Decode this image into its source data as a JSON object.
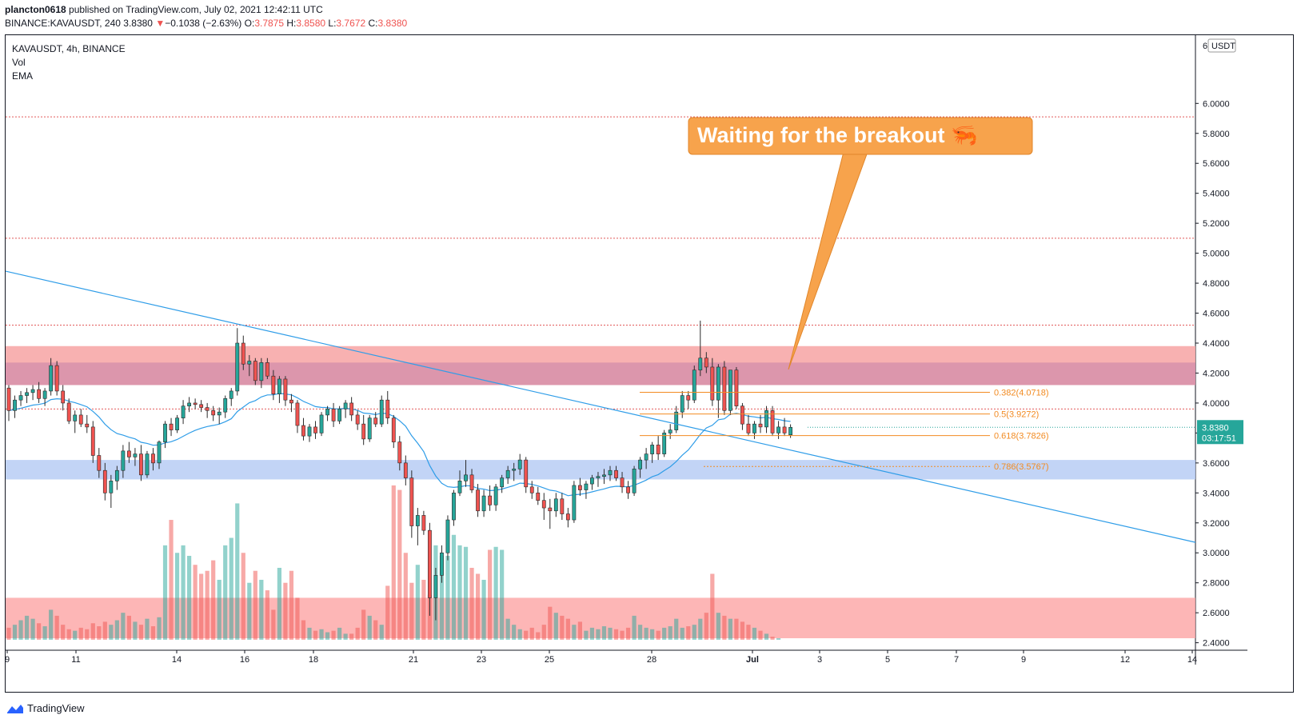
{
  "header": {
    "author": "plancton0618",
    "published": "published on TradingView.com, July 02, 2021 12:42:11 UTC",
    "symbol_line": "BINANCE:KAVAUSDT, 240",
    "last": "3.8380",
    "change_arrow": "▼",
    "change": "−0.1038 (−2.63%)",
    "o_label": "O:",
    "o": "3.7875",
    "h_label": "H:",
    "h": "3.8580",
    "l_label": "L:",
    "l": "3.7672",
    "c_label": "C:",
    "c": "3.8380"
  },
  "legend": {
    "title": "KAVAUSDT, 4h, BINANCE",
    "vol": "Vol",
    "ema": "EMA"
  },
  "price_axis": {
    "unit": "USDT",
    "current_price": "3.8380",
    "countdown": "03:17:51"
  },
  "annotation": {
    "text": "Waiting for the breakout 🦐",
    "color": "#f7a34c"
  },
  "footer": {
    "brand": "TradingView"
  },
  "colors": {
    "up": "#26a69a",
    "down": "#ef5350",
    "ema": "#2f9de8",
    "trendline": "#2f9de8",
    "fib": "#f28b22",
    "resistance_zone": "#f7a8a8",
    "support_zone": "#b7cdf5",
    "level_line": "#e25a5a"
  },
  "chart_data": {
    "type": "candlestick",
    "symbol": "KAVAUSDT",
    "interval": "4h",
    "exchange": "BINANCE",
    "x_ticks": [
      "9",
      "11",
      "14",
      "16",
      "18",
      "21",
      "23",
      "25",
      "28",
      "Jul",
      "3",
      "5",
      "7",
      "9",
      "12",
      "14"
    ],
    "y_ticks": [
      "6.0000",
      "5.8000",
      "5.6000",
      "5.4000",
      "5.2000",
      "5.0000",
      "4.8000",
      "4.6000",
      "4.4000",
      "4.2000",
      "4.0000",
      "3.8000",
      "3.6000",
      "3.4000",
      "3.2000",
      "3.0000",
      "2.8000",
      "2.6000",
      "2.4000"
    ],
    "y_top_tick": "6",
    "ylim": [
      2.35,
      6.45
    ],
    "horizontal_levels": [
      5.91,
      5.1,
      4.52,
      3.96
    ],
    "zones": [
      {
        "name": "resistance",
        "from": 4.12,
        "to": 4.38
      },
      {
        "name": "resistance-inner",
        "from": 4.12,
        "to": 4.27
      },
      {
        "name": "support",
        "from": 3.49,
        "to": 3.62
      },
      {
        "name": "volume-band",
        "from": 2.43,
        "to": 2.7
      }
    ],
    "trendline": {
      "from": {
        "x": "9",
        "y": 4.88
      },
      "to": {
        "x": "14",
        "y": 3.07
      }
    },
    "fib_levels": [
      {
        "label": "0.382(4.0718)",
        "value": 4.0718
      },
      {
        "label": "0.5(3.9272)",
        "value": 3.9272
      },
      {
        "label": "0.618(3.7826)",
        "value": 3.7826
      },
      {
        "label": "0.786(3.5767)",
        "value": 3.5767
      }
    ],
    "candles": [
      [
        4.1,
        4.12,
        3.88,
        3.95
      ],
      [
        3.95,
        4.05,
        3.9,
        4.02
      ],
      [
        4.02,
        4.08,
        3.98,
        4.05
      ],
      [
        4.05,
        4.1,
        4.0,
        4.07
      ],
      [
        4.07,
        4.12,
        4.02,
        4.09
      ],
      [
        4.09,
        4.14,
        4.0,
        4.03
      ],
      [
        4.03,
        4.1,
        3.98,
        4.08
      ],
      [
        4.08,
        4.3,
        4.05,
        4.25
      ],
      [
        4.25,
        4.28,
        4.05,
        4.08
      ],
      [
        4.08,
        4.12,
        3.95,
        4.0
      ],
      [
        4.0,
        4.03,
        3.86,
        3.88
      ],
      [
        3.88,
        3.95,
        3.8,
        3.92
      ],
      [
        3.92,
        3.96,
        3.84,
        3.86
      ],
      [
        3.86,
        3.92,
        3.8,
        3.84
      ],
      [
        3.84,
        3.88,
        3.6,
        3.65
      ],
      [
        3.65,
        3.7,
        3.5,
        3.55
      ],
      [
        3.55,
        3.6,
        3.35,
        3.4
      ],
      [
        3.4,
        3.52,
        3.3,
        3.48
      ],
      [
        3.48,
        3.58,
        3.42,
        3.55
      ],
      [
        3.55,
        3.72,
        3.5,
        3.68
      ],
      [
        3.68,
        3.74,
        3.6,
        3.64
      ],
      [
        3.64,
        3.7,
        3.58,
        3.66
      ],
      [
        3.66,
        3.72,
        3.48,
        3.52
      ],
      [
        3.52,
        3.68,
        3.5,
        3.66
      ],
      [
        3.66,
        3.7,
        3.55,
        3.6
      ],
      [
        3.6,
        3.75,
        3.56,
        3.74
      ],
      [
        3.74,
        3.88,
        3.7,
        3.86
      ],
      [
        3.86,
        3.9,
        3.78,
        3.82
      ],
      [
        3.82,
        3.92,
        3.8,
        3.9
      ],
      [
        3.9,
        4.02,
        3.86,
        3.98
      ],
      [
        3.98,
        4.04,
        3.94,
        4.0
      ],
      [
        4.0,
        4.03,
        3.96,
        3.99
      ],
      [
        3.99,
        4.02,
        3.94,
        3.97
      ],
      [
        3.97,
        4.0,
        3.9,
        3.95
      ],
      [
        3.95,
        3.98,
        3.88,
        3.92
      ],
      [
        3.92,
        3.97,
        3.86,
        3.94
      ],
      [
        3.94,
        4.05,
        3.9,
        4.03
      ],
      [
        4.03,
        4.1,
        3.98,
        4.08
      ],
      [
        4.08,
        4.5,
        4.05,
        4.4
      ],
      [
        4.4,
        4.45,
        4.22,
        4.26
      ],
      [
        4.26,
        4.32,
        4.18,
        4.28
      ],
      [
        4.28,
        4.3,
        4.12,
        4.15
      ],
      [
        4.15,
        4.3,
        4.1,
        4.27
      ],
      [
        4.27,
        4.3,
        4.16,
        4.18
      ],
      [
        4.18,
        4.22,
        4.02,
        4.06
      ],
      [
        4.06,
        4.18,
        4.0,
        4.16
      ],
      [
        4.16,
        4.18,
        3.98,
        4.02
      ],
      [
        4.02,
        4.06,
        3.94,
        4.0
      ],
      [
        4.0,
        4.02,
        3.8,
        3.85
      ],
      [
        3.85,
        3.9,
        3.75,
        3.78
      ],
      [
        3.78,
        3.86,
        3.74,
        3.84
      ],
      [
        3.84,
        3.88,
        3.76,
        3.8
      ],
      [
        3.8,
        3.94,
        3.78,
        3.92
      ],
      [
        3.92,
        3.98,
        3.88,
        3.96
      ],
      [
        3.96,
        4.0,
        3.84,
        3.88
      ],
      [
        3.88,
        3.98,
        3.86,
        3.96
      ],
      [
        3.96,
        4.02,
        3.9,
        4.0
      ],
      [
        4.0,
        4.04,
        3.88,
        3.92
      ],
      [
        3.92,
        3.95,
        3.82,
        3.86
      ],
      [
        3.86,
        3.92,
        3.72,
        3.76
      ],
      [
        3.76,
        3.92,
        3.74,
        3.9
      ],
      [
        3.9,
        3.94,
        3.84,
        3.86
      ],
      [
        3.86,
        4.05,
        3.84,
        4.02
      ],
      [
        4.02,
        4.08,
        3.86,
        3.9
      ],
      [
        3.9,
        3.92,
        3.7,
        3.74
      ],
      [
        3.74,
        3.78,
        3.55,
        3.6
      ],
      [
        3.6,
        3.65,
        3.45,
        3.5
      ],
      [
        3.5,
        3.55,
        3.1,
        3.18
      ],
      [
        3.18,
        3.3,
        3.05,
        3.25
      ],
      [
        3.25,
        3.28,
        3.12,
        3.15
      ],
      [
        3.15,
        3.2,
        2.58,
        2.7
      ],
      [
        2.7,
        2.9,
        2.55,
        2.85
      ],
      [
        2.85,
        3.05,
        2.8,
        3.0
      ],
      [
        3.0,
        3.25,
        2.95,
        3.22
      ],
      [
        3.22,
        3.42,
        3.18,
        3.4
      ],
      [
        3.4,
        3.55,
        3.38,
        3.48
      ],
      [
        3.48,
        3.62,
        3.44,
        3.52
      ],
      [
        3.52,
        3.56,
        3.4,
        3.42
      ],
      [
        3.42,
        3.46,
        3.24,
        3.28
      ],
      [
        3.28,
        3.42,
        3.24,
        3.38
      ],
      [
        3.38,
        3.45,
        3.28,
        3.32
      ],
      [
        3.32,
        3.46,
        3.28,
        3.44
      ],
      [
        3.44,
        3.52,
        3.4,
        3.5
      ],
      [
        3.5,
        3.58,
        3.46,
        3.55
      ],
      [
        3.55,
        3.6,
        3.48,
        3.56
      ],
      [
        3.56,
        3.66,
        3.52,
        3.62
      ],
      [
        3.62,
        3.64,
        3.4,
        3.44
      ],
      [
        3.44,
        3.48,
        3.36,
        3.4
      ],
      [
        3.4,
        3.44,
        3.32,
        3.35
      ],
      [
        3.35,
        3.4,
        3.22,
        3.3
      ],
      [
        3.3,
        3.36,
        3.16,
        3.28
      ],
      [
        3.28,
        3.4,
        3.24,
        3.36
      ],
      [
        3.36,
        3.4,
        3.22,
        3.26
      ],
      [
        3.26,
        3.3,
        3.17,
        3.22
      ],
      [
        3.22,
        3.48,
        3.2,
        3.45
      ],
      [
        3.45,
        3.5,
        3.38,
        3.42
      ],
      [
        3.42,
        3.48,
        3.36,
        3.46
      ],
      [
        3.46,
        3.52,
        3.42,
        3.5
      ],
      [
        3.5,
        3.54,
        3.44,
        3.51
      ],
      [
        3.51,
        3.56,
        3.46,
        3.52
      ],
      [
        3.52,
        3.58,
        3.48,
        3.55
      ],
      [
        3.55,
        3.58,
        3.48,
        3.5
      ],
      [
        3.5,
        3.54,
        3.4,
        3.44
      ],
      [
        3.44,
        3.48,
        3.36,
        3.4
      ],
      [
        3.4,
        3.58,
        3.38,
        3.56
      ],
      [
        3.56,
        3.64,
        3.5,
        3.62
      ],
      [
        3.62,
        3.7,
        3.56,
        3.66
      ],
      [
        3.66,
        3.74,
        3.6,
        3.72
      ],
      [
        3.72,
        3.78,
        3.62,
        3.66
      ],
      [
        3.66,
        3.82,
        3.64,
        3.8
      ],
      [
        3.8,
        3.86,
        3.76,
        3.82
      ],
      [
        3.82,
        3.98,
        3.8,
        3.94
      ],
      [
        3.94,
        4.08,
        3.9,
        4.05
      ],
      [
        4.05,
        4.08,
        3.96,
        4.02
      ],
      [
        4.02,
        4.25,
        4.0,
        4.22
      ],
      [
        4.22,
        4.55,
        4.18,
        4.3
      ],
      [
        4.3,
        4.34,
        4.2,
        4.24
      ],
      [
        4.24,
        4.3,
        3.98,
        4.02
      ],
      [
        4.02,
        4.26,
        3.9,
        4.24
      ],
      [
        4.24,
        4.28,
        3.92,
        3.95
      ],
      [
        3.95,
        4.22,
        3.92,
        4.22
      ],
      [
        4.22,
        4.24,
        3.96,
        3.98
      ],
      [
        3.98,
        4.0,
        3.82,
        3.86
      ],
      [
        3.86,
        3.92,
        3.78,
        3.8
      ],
      [
        3.8,
        3.88,
        3.76,
        3.86
      ],
      [
        3.86,
        3.92,
        3.8,
        3.84
      ],
      [
        3.84,
        3.98,
        3.8,
        3.95
      ],
      [
        3.95,
        3.98,
        3.78,
        3.8
      ],
      [
        3.8,
        3.88,
        3.76,
        3.84
      ],
      [
        3.84,
        3.9,
        3.78,
        3.8
      ],
      [
        3.7875,
        3.858,
        3.7672,
        3.838
      ]
    ],
    "volume": [
      2.5,
      2.52,
      2.55,
      2.58,
      2.56,
      2.53,
      2.51,
      2.62,
      2.58,
      2.52,
      2.49,
      2.48,
      2.5,
      2.49,
      2.53,
      2.51,
      2.54,
      2.52,
      2.55,
      2.6,
      2.58,
      2.54,
      2.52,
      2.56,
      2.51,
      2.57,
      3.05,
      3.22,
      3.0,
      3.05,
      2.98,
      2.92,
      2.86,
      2.88,
      2.95,
      2.82,
      3.05,
      3.1,
      3.33,
      3.0,
      2.8,
      2.88,
      2.82,
      2.75,
      2.62,
      2.9,
      2.8,
      2.88,
      2.7,
      2.55,
      2.5,
      2.48,
      2.49,
      2.47,
      2.48,
      2.5,
      2.46,
      2.46,
      2.5,
      2.62,
      2.58,
      2.55,
      2.52,
      2.78,
      3.45,
      3.42,
      3.0,
      2.8,
      2.92,
      2.82,
      2.72,
      3.05,
      2.98,
      2.98,
      3.12,
      3.05,
      3.04,
      2.9,
      2.86,
      2.82,
      3.02,
      3.04,
      3.02,
      2.56,
      2.52,
      2.49,
      2.48,
      2.5,
      2.47,
      2.52,
      2.64,
      2.6,
      2.58,
      2.56,
      2.52,
      2.54,
      2.48,
      2.5,
      2.49,
      2.51,
      2.5,
      2.49,
      2.48,
      2.5,
      2.58,
      2.52,
      2.5,
      2.49,
      2.48,
      2.5,
      2.51,
      2.56,
      2.5,
      2.51,
      2.52,
      2.56,
      2.6,
      2.86,
      2.6,
      2.58,
      2.56,
      2.56,
      2.54,
      2.52,
      2.5,
      2.48,
      2.46,
      2.44,
      2.43,
      2.42,
      2.41
    ]
  }
}
